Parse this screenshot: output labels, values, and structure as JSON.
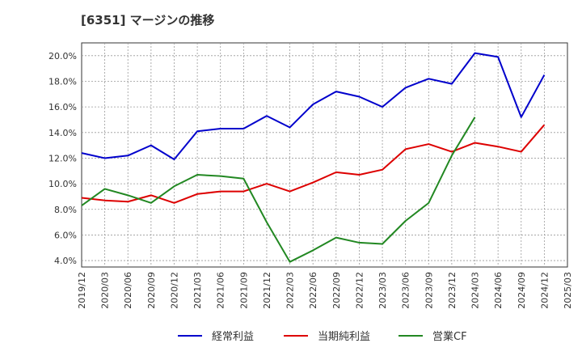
{
  "title": "[6351]  マージンの推移",
  "chart_data": {
    "type": "line",
    "x": [
      "2019/12",
      "2020/03",
      "2020/06",
      "2020/09",
      "2020/12",
      "2021/03",
      "2021/06",
      "2021/09",
      "2021/12",
      "2022/03",
      "2022/06",
      "2022/09",
      "2022/12",
      "2023/03",
      "2023/06",
      "2023/09",
      "2023/12",
      "2024/03",
      "2024/06",
      "2024/09",
      "2024/12",
      "2025/03"
    ],
    "ylim": [
      3.5,
      21.0
    ],
    "yticks": [
      4,
      6,
      8,
      10,
      12,
      14,
      16,
      18,
      20
    ],
    "ytick_labels": [
      "4.0%",
      "6.0%",
      "8.0%",
      "10.0%",
      "12.0%",
      "14.0%",
      "16.0%",
      "18.0%",
      "20.0%"
    ],
    "grid": true,
    "legend_position": "bottom",
    "series": [
      {
        "name": "経常利益",
        "color": "#0000cc",
        "values": [
          12.4,
          12.0,
          12.2,
          13.0,
          11.9,
          14.1,
          14.3,
          14.3,
          15.3,
          14.4,
          16.2,
          17.2,
          16.8,
          16.0,
          17.5,
          18.2,
          17.8,
          20.2,
          19.9,
          15.2,
          18.5,
          null
        ]
      },
      {
        "name": "当期純利益",
        "color": "#dd0000",
        "values": [
          8.9,
          8.7,
          8.6,
          9.1,
          8.5,
          9.2,
          9.4,
          9.4,
          10.0,
          9.4,
          10.1,
          10.9,
          10.7,
          11.1,
          12.7,
          13.1,
          12.5,
          13.2,
          12.9,
          12.5,
          14.6,
          null
        ]
      },
      {
        "name": "営業CF",
        "color": "#228822",
        "values": [
          8.3,
          9.6,
          9.1,
          8.5,
          9.8,
          10.7,
          10.6,
          10.4,
          7.0,
          3.9,
          4.8,
          5.8,
          5.4,
          5.3,
          7.1,
          8.5,
          12.2,
          15.2,
          null,
          null,
          null,
          null
        ]
      }
    ]
  }
}
